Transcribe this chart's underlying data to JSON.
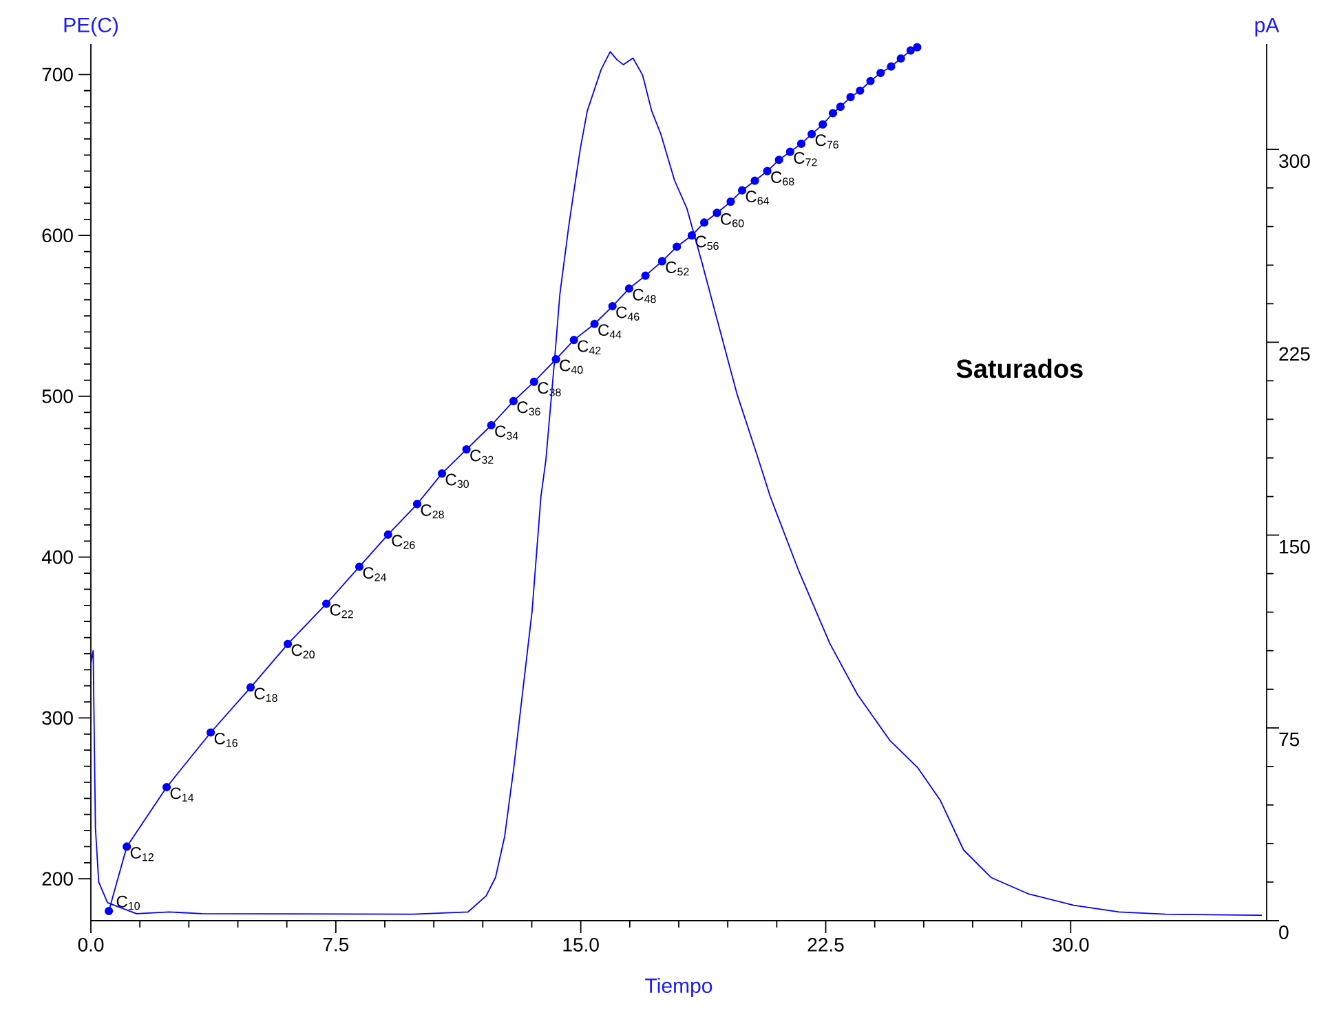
{
  "chart_data": {
    "type": "line",
    "xlabel": "Tiempo",
    "ylabel": "PE(C)",
    "y2label": "pA",
    "xlim": [
      0,
      36
    ],
    "ylim": [
      174,
      719
    ],
    "y2lim": [
      0,
      341
    ],
    "xticks": [
      {
        "value": 0,
        "label": "0.0"
      },
      7.5,
      {
        "value": 15,
        "label": "15.0"
      },
      22.5,
      {
        "value": 30,
        "label": "30.0"
      }
    ],
    "yticks": [
      200,
      300,
      400,
      500,
      600,
      700
    ],
    "y2ticks": [
      0,
      75,
      150,
      225,
      300
    ],
    "series": [
      {
        "axis": "y",
        "color": "#0000ff",
        "marker": "circle",
        "x": [
          0.55,
          1.1,
          2.32,
          3.67,
          4.89,
          6.03,
          7.21,
          8.22,
          9.1,
          9.99,
          10.75,
          11.5,
          12.26,
          12.94,
          13.57,
          14.24,
          14.79,
          15.42,
          15.97,
          16.48,
          16.98,
          17.49,
          17.94,
          18.4,
          18.78,
          19.17,
          19.59,
          19.94,
          20.33,
          20.71,
          21.07,
          21.41,
          21.75,
          22.07,
          22.41,
          22.72,
          22.95,
          23.26,
          23.55,
          23.87,
          24.18,
          24.5,
          24.8,
          25.1,
          25.3
        ],
        "values": [
          180,
          220,
          257,
          291,
          319,
          346,
          371,
          394,
          414,
          433,
          452,
          467,
          482,
          497,
          509,
          523,
          535,
          545,
          556,
          567,
          575,
          584,
          593,
          600,
          608,
          614,
          621,
          628,
          634,
          640,
          647,
          652,
          657,
          663,
          669,
          676,
          680,
          686,
          690,
          696,
          701,
          705,
          710,
          715,
          717
        ]
      },
      {
        "axis": "y2",
        "color": "#0000ff",
        "marker": "none",
        "x": [
          0,
          0.07,
          0.14,
          0.24,
          0.51,
          1.4,
          2.4,
          3.4,
          9.86,
          11.55,
          12.1,
          12.39,
          12.67,
          12.95,
          13.23,
          13.51,
          13.78,
          13.93,
          14.2,
          14.36,
          14.63,
          14.78,
          14.99,
          15.2,
          15.41,
          15.62,
          15.9,
          16.1,
          16.3,
          16.6,
          16.89,
          17.17,
          17.45,
          17.87,
          18.25,
          18.71,
          19.17,
          19.78,
          20.4,
          20.8,
          21.02,
          21.66,
          22.63,
          23.47,
          24.47,
          25.31,
          26.0,
          26.72,
          27.56,
          28.69,
          30.09,
          31.48,
          32.9,
          35.85
        ],
        "values": [
          100,
          105,
          36,
          15,
          7,
          2.7,
          3.4,
          2.7,
          2.5,
          3.4,
          9.6,
          16.8,
          32.8,
          59.6,
          90,
          120.5,
          165,
          179,
          218.5,
          243.7,
          270,
          283,
          300.6,
          315,
          323,
          331,
          338,
          335,
          333,
          335.5,
          329,
          315,
          306,
          288,
          277,
          256,
          234,
          205,
          181,
          165,
          157.7,
          136.5,
          107.7,
          88,
          70,
          59.6,
          47,
          27.5,
          16.8,
          10.5,
          6,
          3.4,
          2.5,
          2.1
        ]
      }
    ],
    "annotations": [
      {
        "text": "C$_{10}$",
        "x": 0.55,
        "y": 180
      },
      {
        "text": "C$_{12}$",
        "x": 1.1,
        "y": 220
      },
      {
        "text": "C$_{14}$",
        "x": 2.32,
        "y": 257
      },
      {
        "text": "C$_{16}$",
        "x": 3.67,
        "y": 291
      },
      {
        "text": "C$_{18}$",
        "x": 4.89,
        "y": 319
      },
      {
        "text": "C$_{20}$",
        "x": 6.03,
        "y": 346
      },
      {
        "text": "C$_{22}$",
        "x": 7.21,
        "y": 371
      },
      {
        "text": "C$_{24}$",
        "x": 8.22,
        "y": 394
      },
      {
        "text": "C$_{26}$",
        "x": 9.1,
        "y": 414
      },
      {
        "text": "C$_{28}$",
        "x": 9.99,
        "y": 433
      },
      {
        "text": "C$_{30}$",
        "x": 10.75,
        "y": 452
      },
      {
        "text": "C$_{32}$",
        "x": 11.5,
        "y": 467
      },
      {
        "text": "C$_{34}$",
        "x": 12.26,
        "y": 482
      },
      {
        "text": "C$_{36}$",
        "x": 12.94,
        "y": 497
      },
      {
        "text": "C$_{38}$",
        "x": 13.57,
        "y": 509
      },
      {
        "text": "C$_{40}$",
        "x": 14.24,
        "y": 523
      },
      {
        "text": "C$_{42}$",
        "x": 14.79,
        "y": 535
      },
      {
        "text": "C$_{44}$",
        "x": 15.42,
        "y": 545
      },
      {
        "text": "C$_{46}$",
        "x": 15.97,
        "y": 556
      },
      {
        "text": "C$_{48}$",
        "x": 16.48,
        "y": 567
      },
      {
        "text": "C$_{52}$",
        "x": 17.49,
        "y": 584
      },
      {
        "text": "C$_{56}$",
        "x": 18.4,
        "y": 600
      },
      {
        "text": "C$_{60}$",
        "x": 19.17,
        "y": 614
      },
      {
        "text": "C$_{64}$",
        "x": 19.94,
        "y": 628
      },
      {
        "text": "C$_{68}$",
        "x": 20.71,
        "y": 640
      },
      {
        "text": "C$_{72}$",
        "x": 21.41,
        "y": 652
      },
      {
        "text": "C$_{76}$",
        "x": 22.07,
        "y": 663
      },
      "**Saturados**"
    ]
  }
}
